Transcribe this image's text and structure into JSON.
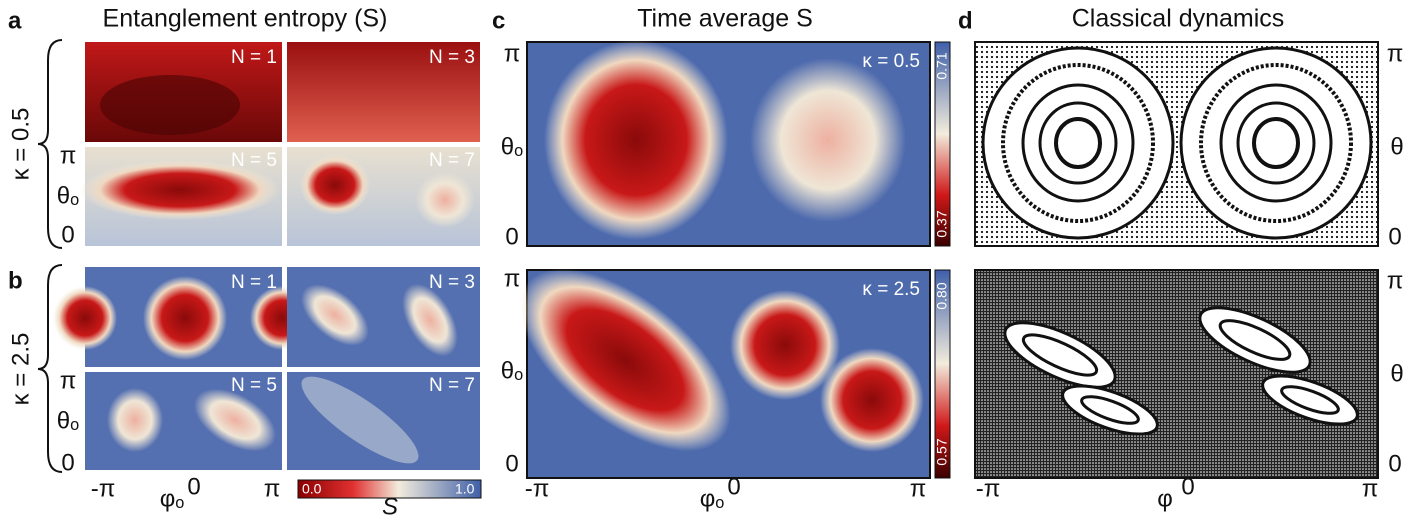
{
  "panel_a": {
    "label": "a",
    "title": "Entanglement entropy (S)",
    "kappa": "κ = 0.5",
    "tiles": [
      "N = 1",
      "N = 3",
      "N = 5",
      "N = 7"
    ],
    "y_labels": [
      "π",
      "θₒ",
      "0"
    ]
  },
  "panel_b": {
    "label": "b",
    "kappa": "κ = 2.5",
    "tiles": [
      "N = 1",
      "N = 3",
      "N = 5",
      "N = 7"
    ],
    "y_labels": [
      "π",
      "θₒ",
      "0"
    ],
    "x_labels": [
      "-π",
      "φₒ",
      "0",
      "π"
    ],
    "colorbar": {
      "min": "0.0",
      "max": "1.0",
      "label": "S"
    }
  },
  "panel_c": {
    "label": "c",
    "title": "Time average S",
    "plots": [
      {
        "kappa": "κ = 0.5",
        "colorbar": [
          "0.71",
          "0.37"
        ],
        "y_labels": [
          "π",
          "θₒ",
          "0"
        ]
      },
      {
        "kappa": "κ = 2.5",
        "colorbar": [
          "0.80",
          "0.57"
        ],
        "y_labels": [
          "π",
          "θₒ",
          "0"
        ]
      }
    ],
    "x_labels": [
      "-π",
      "φₒ",
      "0",
      "π"
    ]
  },
  "panel_d": {
    "label": "d",
    "title": "Classical dynamics",
    "plots": [
      {
        "y_labels": [
          "π",
          "θ",
          "0"
        ]
      },
      {
        "y_labels": [
          "π",
          "θ",
          "0"
        ]
      }
    ],
    "x_labels": [
      "-π",
      "φ",
      "0",
      "π"
    ]
  }
}
